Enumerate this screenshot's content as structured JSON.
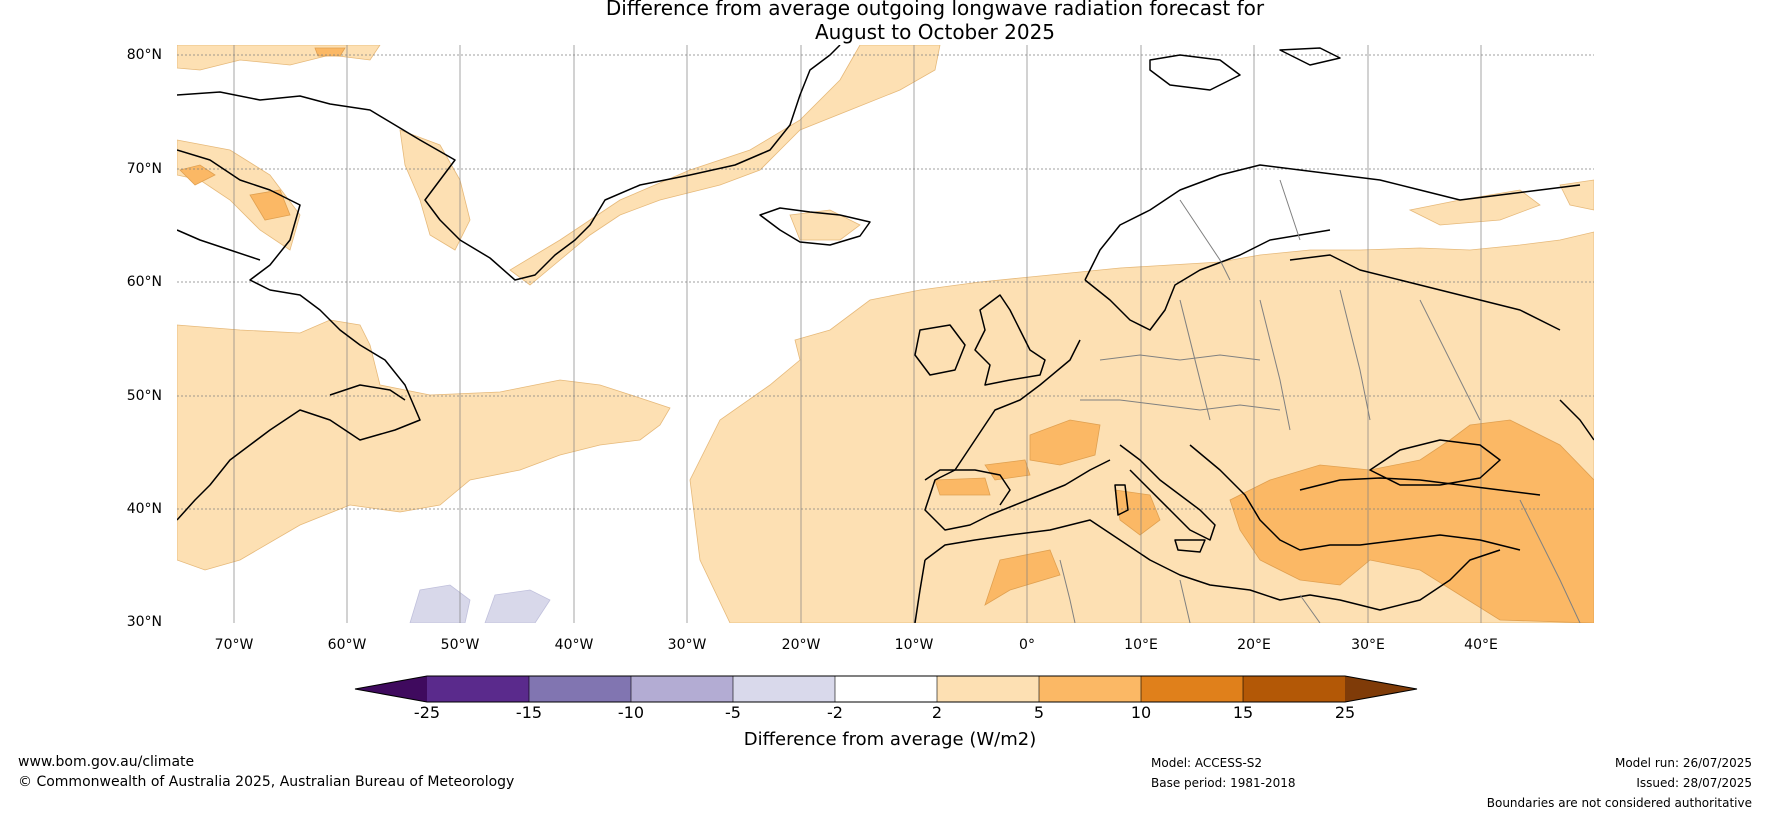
{
  "title": {
    "line1": "Difference from average outgoing longwave radiation forecast for",
    "line2": "August to October 2025"
  },
  "map": {
    "lat_labels": [
      "80°N",
      "70°N",
      "60°N",
      "50°N",
      "40°N",
      "30°N"
    ],
    "lon_labels": [
      "70°W",
      "60°W",
      "50°W",
      "40°W",
      "30°W",
      "20°W",
      "10°W",
      "0°",
      "10°E",
      "20°E",
      "30°E",
      "40°E"
    ],
    "extent": {
      "lon_min": -75,
      "lon_max": 50,
      "lat_min": 30,
      "lat_max": 81
    },
    "colors": {
      "light_orange": "#fde0b3",
      "orange": "#fbb865",
      "lavender": "#d8d8ea",
      "coast": "#000000",
      "border": "#808080",
      "grid": "#808080"
    }
  },
  "colorbar": {
    "ticks": [
      "-25",
      "-15",
      "-10",
      "-5",
      "-2",
      "2",
      "5",
      "10",
      "15",
      "25"
    ],
    "colors": [
      "#3f0a5e",
      "#5a2a8c",
      "#8175b1",
      "#b3acd3",
      "#d9d9eb",
      "#ffffff",
      "#fde0b3",
      "#fbb865",
      "#e0801b",
      "#b35806",
      "#7f3b08"
    ],
    "label": "Difference from average (W/m2)"
  },
  "footer": {
    "website": "www.bom.gov.au/climate",
    "copyright": "© Commonwealth of Australia 2025, Australian Bureau of Meteorology",
    "model": "Model: ACCESS-S2",
    "base_period": "Base period: 1981-2018",
    "model_run": "Model run: 26/07/2025",
    "issued": "Issued: 28/07/2025",
    "disclaimer": "Boundaries are not considered authoritative"
  }
}
